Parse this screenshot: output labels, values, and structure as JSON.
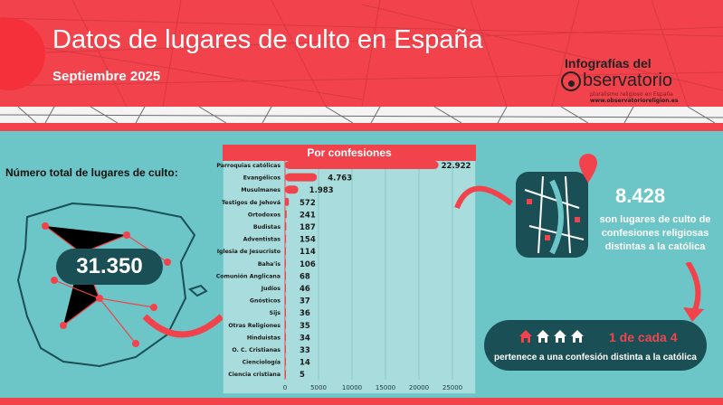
{
  "header": {
    "title": "Datos de lugares de culto en España",
    "subtitle": "Septiembre 2025"
  },
  "logo": {
    "line1": "Infografías del",
    "name": "bservatorio",
    "tagline": "pluralismo religioso en España",
    "url": "www.observatorioreligion.es"
  },
  "total": {
    "label": "Número total de lugares de culto:",
    "value": "31.350"
  },
  "non_catholic": {
    "value": "8.428",
    "text": "son lugares de culto de confesiones religiosas distintas a la católica"
  },
  "ratio": {
    "headline": "1 de cada 4",
    "text": "pertenece a una confesión distinta a la católica",
    "filled_houses": 1,
    "total_houses": 4
  },
  "colors": {
    "accent": "#f2434c",
    "dark": "#1a4f55",
    "teal": "#6cc5c6"
  },
  "chart_data": {
    "type": "bar",
    "orientation": "horizontal",
    "title": "Por confesiones",
    "categories": [
      "Parroquias católicas",
      "Evangélicos",
      "Musulmanes",
      "Testigos de Jehová",
      "Ortodoxos",
      "Budistas",
      "Adventistas",
      "Iglesia de Jesucristo",
      "Baha'is",
      "Comunión Anglicana",
      "Judíos",
      "Gnósticos",
      "Sijs",
      "Otras Religiones",
      "Hinduistas",
      "O. C. Cristianas",
      "Cienciología",
      "Ciencia cristiana"
    ],
    "values": [
      22922,
      4763,
      1983,
      572,
      241,
      187,
      154,
      114,
      106,
      68,
      46,
      37,
      36,
      35,
      34,
      33,
      14,
      5
    ],
    "value_labels": [
      "22.922",
      "4.763",
      "1.983",
      "572",
      "241",
      "187",
      "154",
      "114",
      "106",
      "68",
      "46",
      "37",
      "36",
      "35",
      "34",
      "33",
      "14",
      "5"
    ],
    "xlim": [
      0,
      27000
    ],
    "ticks": [
      0,
      5000,
      10000,
      15000,
      20000,
      25000
    ],
    "grid": true
  }
}
